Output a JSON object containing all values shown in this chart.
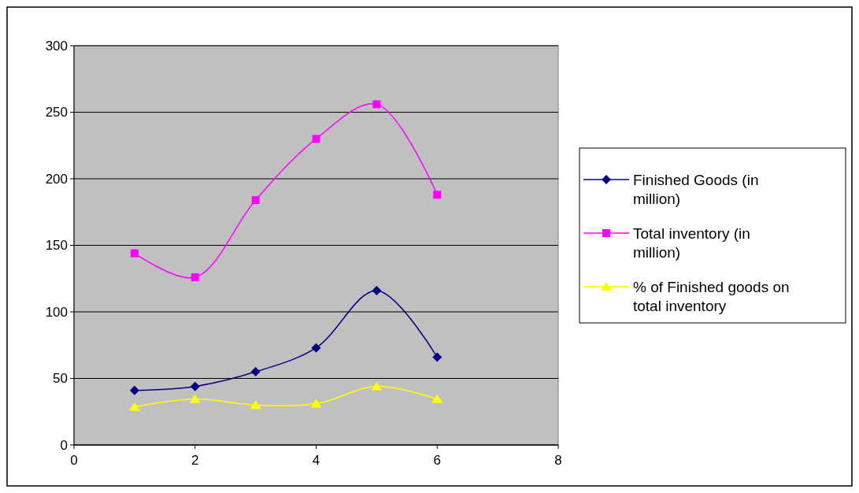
{
  "chart_data": {
    "type": "line",
    "x": [
      1,
      2,
      3,
      4,
      5,
      6
    ],
    "series": [
      {
        "name": "Finished Goods (in million)",
        "color": "#000080",
        "marker": "diamond",
        "values": [
          41,
          44,
          55,
          73,
          116,
          66
        ]
      },
      {
        "name": "Total inventory (in million)",
        "color": "#ff00ff",
        "marker": "square",
        "values": [
          144,
          126,
          184,
          230,
          256,
          188
        ]
      },
      {
        "name": "% of Finished goods on total inventory",
        "color": "#ffff00",
        "marker": "triangle",
        "values": [
          28.5,
          34.5,
          30,
          31,
          44,
          34.5
        ]
      }
    ],
    "xlim": [
      0,
      8
    ],
    "xticks": [
      0,
      2,
      4,
      6,
      8
    ],
    "ylim": [
      0,
      300
    ],
    "yticks": [
      0,
      50,
      100,
      150,
      200,
      250,
      300
    ],
    "grid": "y",
    "legend": "right"
  }
}
